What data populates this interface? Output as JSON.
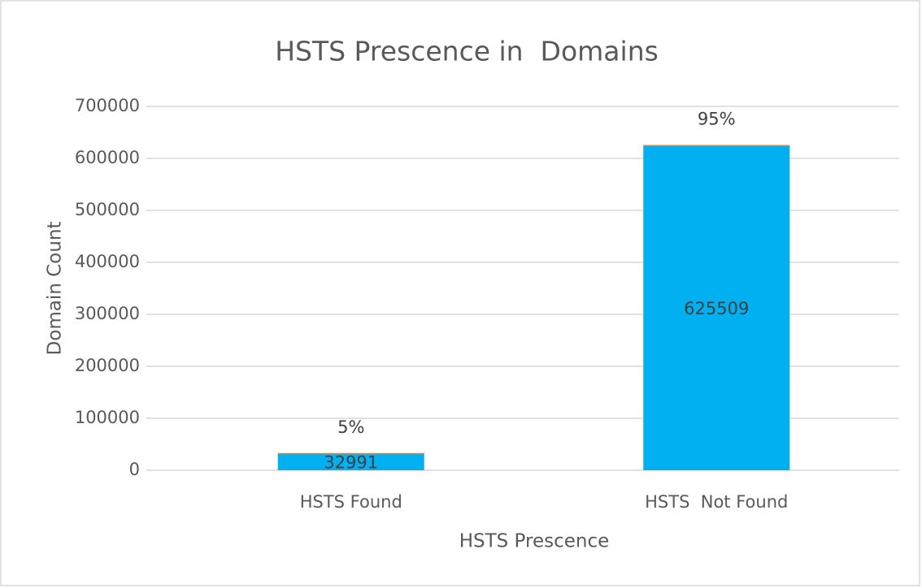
{
  "chart_data": {
    "type": "bar",
    "stacked": true,
    "title": "HSTS Prescence in  Domains",
    "x_label": "HSTS Prescence",
    "y_label": "Domain Count",
    "categories": [
      "HSTS Found",
      "HSTS  Not Found"
    ],
    "series": [
      {
        "color": "#00b0f0",
        "values": [
          32991,
          625509
        ]
      },
      {
        "color": "#ed7d31",
        "values": [
          5,
          95
        ],
        "value_labels": [
          "5%",
          "95%"
        ]
      }
    ],
    "ylim": [
      0,
      700000
    ],
    "yticks": [
      0,
      100000,
      200000,
      300000,
      400000,
      500000,
      600000,
      700000
    ],
    "grid": true
  }
}
